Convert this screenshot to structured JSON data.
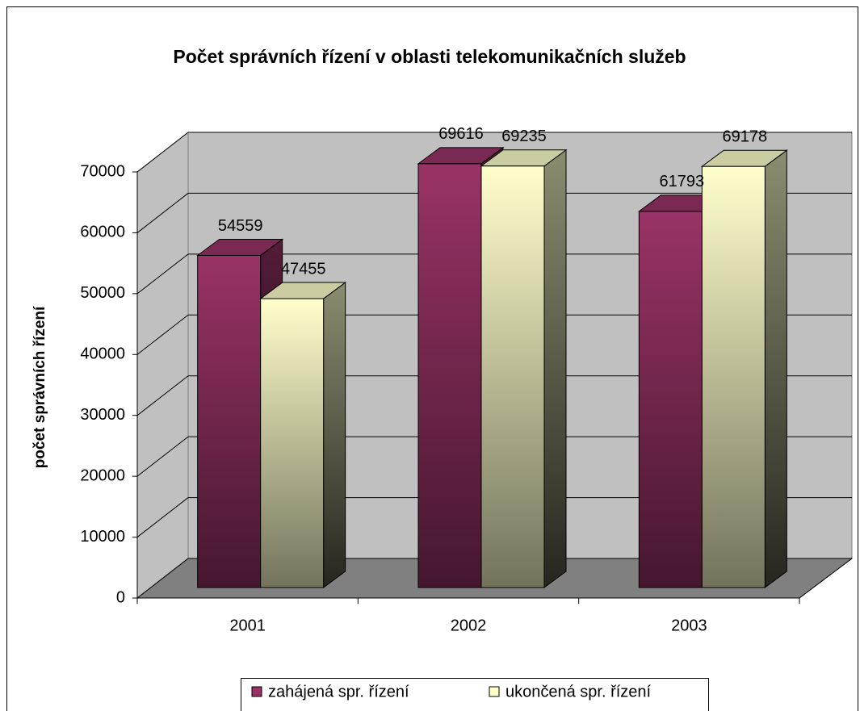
{
  "chart_data": {
    "type": "bar3d",
    "title": "Počet správních řízení v oblasti telekomunikačních služeb",
    "y_label": "počet správních řízení",
    "categories": [
      "2001",
      "2002",
      "2003"
    ],
    "series": [
      {
        "name": "zahájená spr. řízení",
        "color": "#993366",
        "values": [
          54559,
          69616,
          61793
        ]
      },
      {
        "name": "ukončená spr. řízení",
        "color": "#ffffcc",
        "values": [
          47455,
          69235,
          69178
        ]
      }
    ],
    "ylim": [
      0,
      70000
    ],
    "yticks": [
      0,
      10000,
      20000,
      30000,
      40000,
      50000,
      60000,
      70000
    ],
    "grid": true,
    "legend": "bottom"
  }
}
